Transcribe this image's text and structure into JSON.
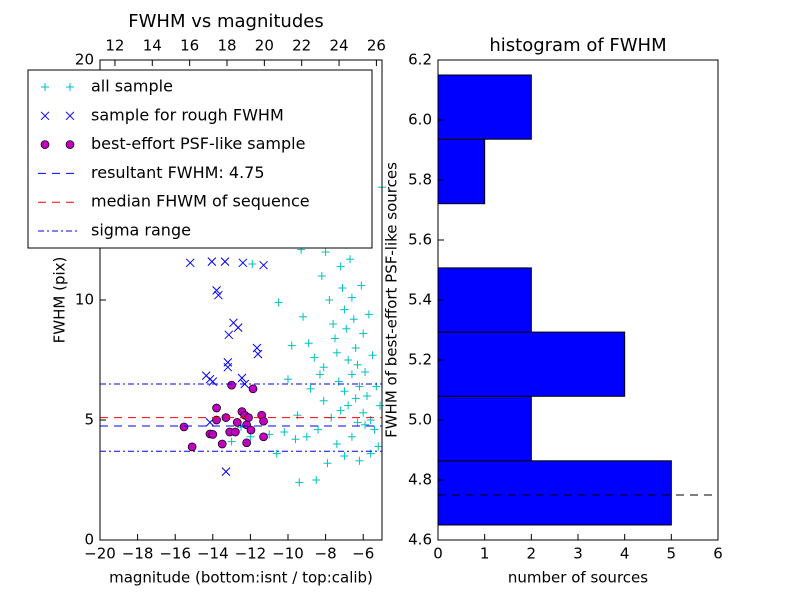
{
  "chart_data": [
    {
      "type": "scatter",
      "title": "FWHM vs magnitudes",
      "xlabel": "magnitude (bottom:isnt / top:calib)",
      "ylabel": "FWHM (pix)",
      "xlim": [
        -20,
        -5
      ],
      "xticks": [
        {
          "value": -20,
          "label": "−20"
        },
        {
          "value": -18,
          "label": "−18"
        },
        {
          "value": -16,
          "label": "−16"
        },
        {
          "value": -14,
          "label": "−14"
        },
        {
          "value": -12,
          "label": "−12"
        },
        {
          "value": -10,
          "label": "−10"
        },
        {
          "value": -8,
          "label": "−8"
        },
        {
          "value": -6,
          "label": "−6"
        }
      ],
      "ylim": [
        0,
        20
      ],
      "yticks": [
        0,
        5,
        10,
        15,
        20
      ],
      "top_axis": {
        "xlim": [
          11.2,
          26.3
        ],
        "xticks": [
          12,
          14,
          16,
          18,
          20,
          22,
          24,
          26
        ]
      },
      "legend": "upper left",
      "series": [
        {
          "name": "all sample",
          "marker": "+",
          "color": "#00bfbf",
          "x": [
            -9.2,
            -8.9,
            -8.6,
            -8.3,
            -8.0,
            -8.1,
            -7.8,
            -7.6,
            -7.5,
            -7.4,
            -7.3,
            -7.2,
            -7.1,
            -7.0,
            -7.0,
            -6.9,
            -6.8,
            -6.8,
            -6.7,
            -6.6,
            -6.6,
            -6.5,
            -6.4,
            -6.4,
            -6.3,
            -6.2,
            -6.1,
            -6.0,
            -6.0,
            -5.9,
            -5.8,
            -5.7,
            -5.6,
            -5.5,
            -5.4,
            -5.3,
            -5.2,
            -5.1,
            -7.7,
            -8.4,
            -9.0,
            -9.6,
            -10.2,
            -10.6,
            -11.0,
            -12.0,
            -12.5,
            -13.0,
            -9.4,
            -8.5,
            -7.9,
            -7.0,
            -6.2,
            -5.6,
            -8.8,
            -9.8,
            -10.5,
            -11.9,
            -9.3,
            -8.2,
            -6.9,
            -5.0,
            -7.4,
            -6.6,
            -5.9,
            -6.3,
            -7.2,
            -8.1,
            -9.5,
            -10.0
          ],
          "values": [
            9.3,
            8.2,
            7.6,
            6.9,
            12.0,
            7.2,
            10.0,
            9.0,
            8.4,
            7.8,
            6.6,
            11.4,
            10.5,
            9.6,
            6.2,
            8.8,
            7.5,
            5.6,
            11.7,
            10.1,
            6.9,
            9.2,
            8.0,
            5.9,
            7.3,
            6.4,
            10.6,
            8.6,
            5.3,
            7.0,
            6.0,
            9.4,
            5.0,
            7.7,
            4.6,
            6.4,
            3.9,
            5.6,
            5.1,
            4.6,
            4.3,
            4.2,
            4.5,
            3.6,
            4.4,
            4.3,
            4.7,
            4.1,
            2.4,
            2.5,
            3.2,
            3.5,
            3.3,
            3.6,
            6.3,
            8.1,
            9.9,
            11.5,
            12.1,
            11.0,
            12.3,
            14.7,
            4.0,
            4.3,
            4.8,
            4.9,
            5.4,
            5.8,
            5.2,
            6.7
          ]
        },
        {
          "name": "sample for rough FWHM",
          "marker": "x",
          "color": "#0000ff",
          "x": [
            -15.2,
            -14.05,
            -13.35,
            -12.4,
            -11.3,
            -13.8,
            -13.7,
            -12.9,
            -12.65,
            -13.15,
            -11.65,
            -11.6,
            -13.2,
            -13.2,
            -14.35,
            -14.15,
            -14.0,
            -12.45,
            -12.3,
            -13.3,
            -14.15
          ],
          "values": [
            11.55,
            11.6,
            11.6,
            11.55,
            11.45,
            10.4,
            10.2,
            9.05,
            8.85,
            8.55,
            8.0,
            7.75,
            7.4,
            7.2,
            6.85,
            6.7,
            6.6,
            6.75,
            6.5,
            2.85,
            4.9
          ]
        },
        {
          "name": "best-effort PSF-like sample",
          "marker": "o",
          "color": "#bf00bf",
          "x": [
            -15.53,
            -15.1,
            -14.15,
            -13.8,
            -13.8,
            -14.0,
            -13.5,
            -13.3,
            -13.1,
            -13.0,
            -12.8,
            -12.7,
            -12.45,
            -12.3,
            -12.2,
            -12.1,
            -11.97,
            -11.86,
            -12.2,
            -11.4,
            -11.3,
            -11.3
          ],
          "values": [
            4.71,
            3.88,
            4.42,
            5.5,
            5.0,
            4.4,
            4.0,
            5.1,
            4.5,
            6.45,
            4.5,
            4.9,
            5.35,
            5.2,
            4.8,
            5.1,
            4.58,
            6.3,
            4.05,
            5.2,
            4.3,
            4.95
          ]
        },
        {
          "name": "resultant FWHM: 4.75",
          "type": "hline",
          "linestyle": "dashed",
          "color": "#0000ff",
          "values": [
            4.75
          ]
        },
        {
          "name": "median FHWM of sequence",
          "type": "hline",
          "linestyle": "dashed",
          "color": "#ff0000",
          "values": [
            5.1
          ]
        },
        {
          "name": "sigma range",
          "type": "hline",
          "linestyle": "dashdot",
          "color": "#0000ff",
          "values": [
            3.7,
            6.5
          ]
        }
      ]
    },
    {
      "type": "histogram",
      "orientation": "horizontal",
      "title": "histogram of FWHM",
      "xlabel": "number of sources",
      "ylabel": "FWHM of best-effort PSF-like sources",
      "bins": [
        4.65,
        4.864,
        5.079,
        5.293,
        5.507,
        5.721,
        5.936,
        6.15
      ],
      "counts": [
        5,
        2,
        4,
        2,
        0,
        1,
        2
      ],
      "color": "#0000ff",
      "reference_line": 4.75,
      "xlim": [
        0,
        6
      ],
      "xticks": [
        0,
        1,
        2,
        3,
        4,
        5,
        6
      ],
      "ylim": [
        4.6,
        6.2
      ],
      "yticks": [
        4.6,
        4.8,
        {
          "value": 5,
          "label": "5.0"
        },
        5.2,
        5.4,
        5.6,
        5.8,
        {
          "value": 6,
          "label": "6.0"
        },
        6.2
      ]
    }
  ]
}
